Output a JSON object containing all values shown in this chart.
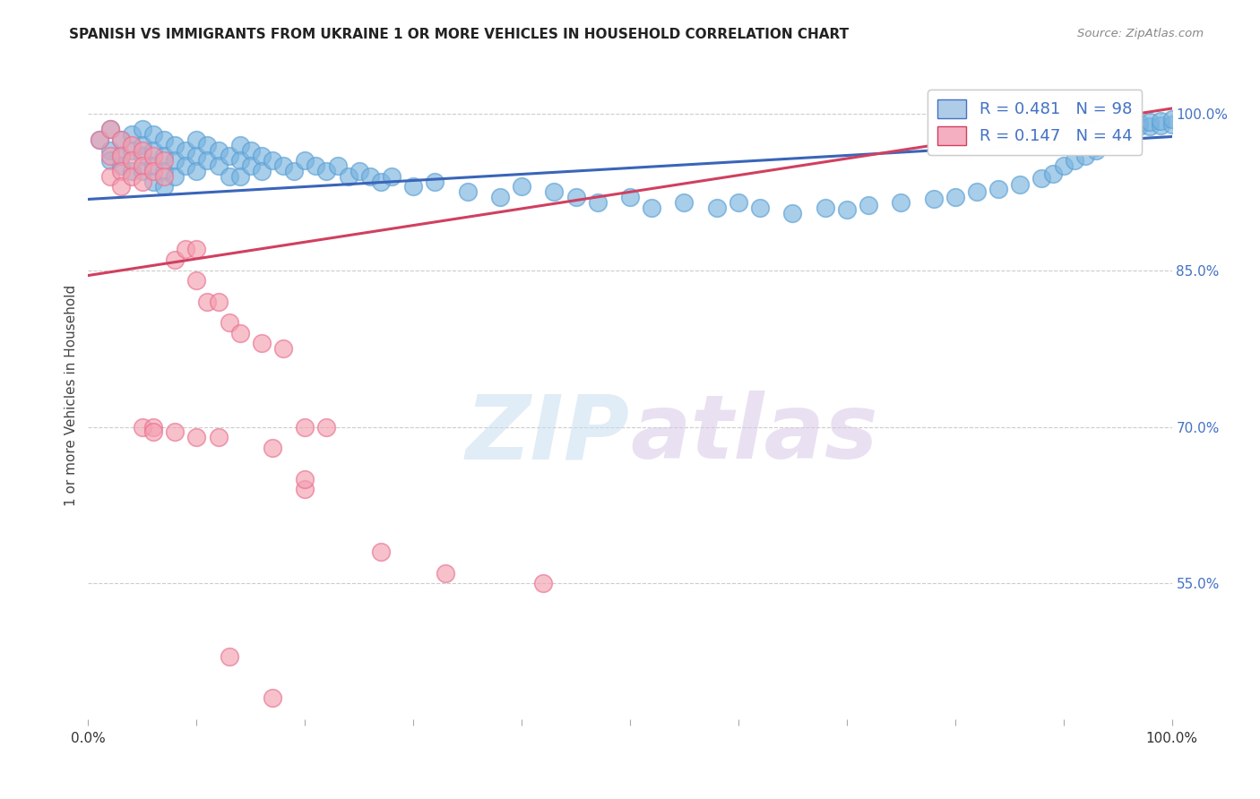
{
  "title": "SPANISH VS IMMIGRANTS FROM UKRAINE 1 OR MORE VEHICLES IN HOUSEHOLD CORRELATION CHART",
  "source": "Source: ZipAtlas.com",
  "ylabel": "1 or more Vehicles in Household",
  "xlim": [
    0.0,
    1.0
  ],
  "ylim": [
    0.42,
    1.04
  ],
  "blue_color": "#7ab5e0",
  "blue_edge_color": "#5a9fd4",
  "pink_color": "#f4a0b0",
  "pink_edge_color": "#e87090",
  "blue_line_color": "#3a65b8",
  "pink_line_color": "#d04060",
  "legend_blue_label": "R = 0.481   N = 98",
  "legend_pink_label": "R = 0.147   N = 44",
  "legend_text_color": "#4472c4",
  "blue_line_y_start": 0.918,
  "blue_line_y_end": 0.978,
  "pink_line_y_start": 0.845,
  "pink_line_y_end": 1.005,
  "watermark_zip": "ZIP",
  "watermark_atlas": "atlas",
  "bg_color": "#ffffff",
  "grid_color": "#cccccc",
  "right_y_ticks": [
    1.0,
    0.85,
    0.7,
    0.55
  ],
  "right_y_labels": [
    "100.0%",
    "85.0%",
    "70.0%",
    "55.0%"
  ],
  "blue_scatter_x": [
    0.01,
    0.02,
    0.02,
    0.02,
    0.03,
    0.03,
    0.03,
    0.04,
    0.04,
    0.04,
    0.05,
    0.05,
    0.05,
    0.05,
    0.06,
    0.06,
    0.06,
    0.06,
    0.07,
    0.07,
    0.07,
    0.07,
    0.08,
    0.08,
    0.08,
    0.09,
    0.09,
    0.1,
    0.1,
    0.1,
    0.11,
    0.11,
    0.12,
    0.12,
    0.13,
    0.13,
    0.14,
    0.14,
    0.14,
    0.15,
    0.15,
    0.16,
    0.16,
    0.17,
    0.18,
    0.19,
    0.2,
    0.21,
    0.22,
    0.23,
    0.24,
    0.25,
    0.26,
    0.27,
    0.28,
    0.3,
    0.32,
    0.35,
    0.38,
    0.4,
    0.43,
    0.45,
    0.47,
    0.5,
    0.52,
    0.55,
    0.58,
    0.6,
    0.62,
    0.65,
    0.68,
    0.7,
    0.72,
    0.75,
    0.78,
    0.8,
    0.82,
    0.84,
    0.86,
    0.88,
    0.89,
    0.9,
    0.91,
    0.92,
    0.93,
    0.93,
    0.94,
    0.95,
    0.96,
    0.96,
    0.97,
    0.97,
    0.98,
    0.98,
    0.99,
    0.99,
    1.0,
    1.0
  ],
  "blue_scatter_y": [
    0.975,
    0.985,
    0.965,
    0.955,
    0.975,
    0.96,
    0.95,
    0.98,
    0.965,
    0.945,
    0.985,
    0.97,
    0.96,
    0.945,
    0.98,
    0.965,
    0.95,
    0.935,
    0.975,
    0.96,
    0.945,
    0.93,
    0.97,
    0.955,
    0.94,
    0.965,
    0.95,
    0.975,
    0.96,
    0.945,
    0.97,
    0.955,
    0.965,
    0.95,
    0.96,
    0.94,
    0.97,
    0.955,
    0.94,
    0.965,
    0.95,
    0.96,
    0.945,
    0.955,
    0.95,
    0.945,
    0.955,
    0.95,
    0.945,
    0.95,
    0.94,
    0.945,
    0.94,
    0.935,
    0.94,
    0.93,
    0.935,
    0.925,
    0.92,
    0.93,
    0.925,
    0.92,
    0.915,
    0.92,
    0.91,
    0.915,
    0.91,
    0.915,
    0.91,
    0.905,
    0.91,
    0.908,
    0.912,
    0.915,
    0.918,
    0.92,
    0.925,
    0.928,
    0.932,
    0.938,
    0.942,
    0.95,
    0.955,
    0.96,
    0.965,
    0.968,
    0.972,
    0.978,
    0.982,
    0.985,
    0.988,
    0.991,
    0.988,
    0.992,
    0.989,
    0.993,
    0.99,
    0.995
  ],
  "pink_scatter_x": [
    0.01,
    0.02,
    0.02,
    0.02,
    0.03,
    0.03,
    0.03,
    0.03,
    0.04,
    0.04,
    0.04,
    0.05,
    0.05,
    0.05,
    0.06,
    0.06,
    0.07,
    0.07,
    0.08,
    0.09,
    0.1,
    0.1,
    0.11,
    0.12,
    0.13,
    0.14,
    0.16,
    0.18,
    0.2,
    0.22,
    0.05,
    0.06,
    0.06,
    0.08,
    0.1,
    0.12,
    0.17,
    0.27,
    0.33,
    0.42,
    0.2,
    0.2,
    0.13,
    0.17
  ],
  "pink_scatter_y": [
    0.975,
    0.985,
    0.96,
    0.94,
    0.975,
    0.96,
    0.945,
    0.93,
    0.97,
    0.955,
    0.94,
    0.965,
    0.95,
    0.935,
    0.96,
    0.945,
    0.955,
    0.94,
    0.86,
    0.87,
    0.87,
    0.84,
    0.82,
    0.82,
    0.8,
    0.79,
    0.78,
    0.775,
    0.7,
    0.7,
    0.7,
    0.7,
    0.695,
    0.695,
    0.69,
    0.69,
    0.68,
    0.58,
    0.56,
    0.55,
    0.64,
    0.65,
    0.48,
    0.44
  ]
}
